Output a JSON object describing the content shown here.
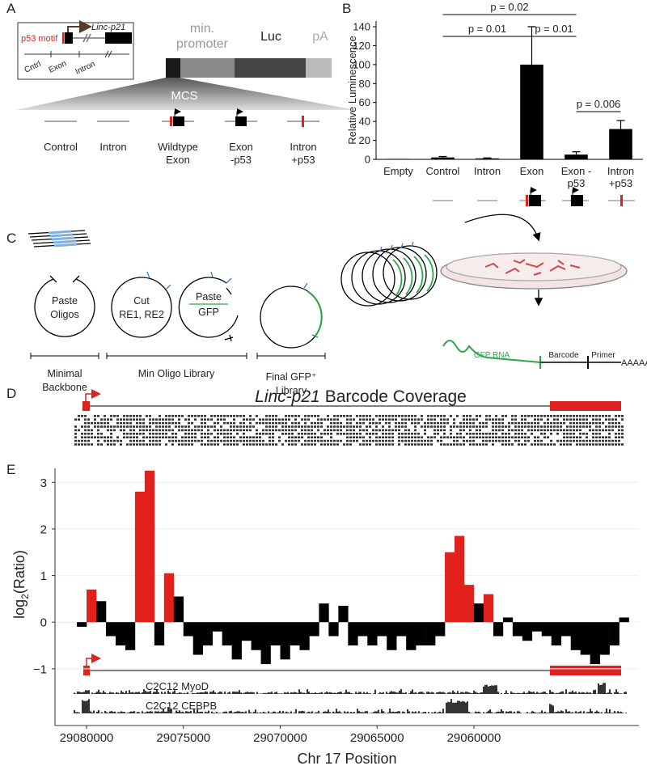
{
  "panel_labels": [
    "A",
    "B",
    "C",
    "D",
    "E"
  ],
  "panel_a": {
    "p53_motif": "p53 motif",
    "gene": "Linc-p21",
    "regions": [
      "Cntrl",
      "Exon",
      "Intron"
    ],
    "promoter": [
      "min.",
      "promoter"
    ],
    "luc": "Luc",
    "pa": "pA",
    "mcs": "MCS",
    "constructs": [
      [
        "Control"
      ],
      [
        "Intron"
      ],
      [
        "Wildtype",
        "Exon"
      ],
      [
        "Exon",
        "-p53"
      ],
      [
        "Intron",
        "+p53"
      ]
    ]
  },
  "panel_c": {
    "paste_oligos": [
      "Paste",
      "Oligos"
    ],
    "cut": [
      "Cut",
      "RE1, RE2"
    ],
    "paste_gfp": [
      "Paste",
      "GFP"
    ],
    "groups": [
      [
        "Minimal",
        "Backbone"
      ],
      [
        "Min Oligo Library"
      ],
      [
        "Final GFP⁺",
        "Library"
      ]
    ],
    "gfp_rna": "GFP RNA",
    "barcode": "Barcode",
    "primer": "Primer",
    "polya": "AAAAAA"
  },
  "panel_d": {
    "title_gene": "Linc-p21",
    "title_rest": "Barcode Coverage"
  },
  "chart_data": [
    {
      "type": "bar",
      "y_label": "Relative Luminescence",
      "categories": [
        "Empty",
        "Control",
        "Intron",
        "Exon",
        "Exon -p53",
        "Intron +p53"
      ],
      "values": [
        0.5,
        2,
        1,
        100,
        5,
        32
      ],
      "errors": [
        0,
        1,
        0.5,
        40,
        3,
        9
      ],
      "color": "#000000",
      "ylim": [
        0,
        146
      ],
      "yticks": [
        0,
        20,
        40,
        60,
        80,
        100,
        120,
        140
      ],
      "annotations": [
        {
          "text": "p = 0.02",
          "between": [
            "Control",
            "Exon -p53"
          ]
        },
        {
          "text": "p = 0.01",
          "between": [
            "Control",
            "Exon"
          ]
        },
        {
          "text": "p = 0.01",
          "between": [
            "Exon",
            "Exon -p53"
          ]
        },
        {
          "text": "p = 0.006",
          "between": [
            "Exon -p53",
            "Intron +p53"
          ]
        }
      ]
    },
    {
      "type": "bar",
      "y_label": {
        "main": "log",
        "sub": "2",
        "rest": "(Ratio)"
      },
      "x_label": "Chr 17 Position",
      "x": [
        29080250,
        29079750,
        29079250,
        29078750,
        29078250,
        29077750,
        29077250,
        29076750,
        29076250,
        29075750,
        29075250,
        29074750,
        29074250,
        29073750,
        29073250,
        29072750,
        29072250,
        29071750,
        29071250,
        29070750,
        29070250,
        29069750,
        29069250,
        29068750,
        29068250,
        29067750,
        29067250,
        29066750,
        29066250,
        29065750,
        29065250,
        29064750,
        29064250,
        29063750,
        29063250,
        29062750,
        29062250,
        29061750,
        29061250,
        29060750,
        29060250,
        29059750,
        29059250,
        29058750,
        29058250,
        29057750,
        29057250,
        29056750,
        29056250,
        29055750,
        29055250,
        29054750,
        29054250,
        29053750,
        29053250,
        29052750,
        29052250
      ],
      "values": [
        -0.1,
        0.7,
        0.45,
        -0.3,
        -0.5,
        -0.6,
        2.8,
        3.25,
        -0.5,
        1.05,
        0.55,
        -0.3,
        -0.7,
        -0.5,
        -0.2,
        -0.5,
        -0.8,
        -0.4,
        -0.6,
        -0.9,
        -0.5,
        -0.8,
        -0.5,
        -0.6,
        -0.3,
        0.4,
        -0.3,
        0.35,
        -0.5,
        -0.3,
        -0.5,
        -0.3,
        -0.6,
        -0.3,
        -0.6,
        -0.5,
        -0.5,
        -0.3,
        1.5,
        1.85,
        0.8,
        0.4,
        0.6,
        -0.3,
        0.1,
        -0.3,
        -0.4,
        -0.2,
        -0.3,
        -0.5,
        -0.3,
        -0.6,
        -0.7,
        -0.9,
        -0.7,
        -0.5,
        0.1
      ],
      "colors": [
        "#000000",
        "#e3211c",
        "#000000",
        "#000000",
        "#000000",
        "#000000",
        "#e3211c",
        "#e3211c",
        "#000000",
        "#e3211c",
        "#000000",
        "#000000",
        "#000000",
        "#000000",
        "#000000",
        "#000000",
        "#000000",
        "#000000",
        "#000000",
        "#000000",
        "#000000",
        "#000000",
        "#000000",
        "#000000",
        "#000000",
        "#000000",
        "#000000",
        "#000000",
        "#000000",
        "#000000",
        "#000000",
        "#000000",
        "#000000",
        "#000000",
        "#000000",
        "#000000",
        "#000000",
        "#000000",
        "#e3211c",
        "#e3211c",
        "#e3211c",
        "#000000",
        "#e3211c",
        "#000000",
        "#000000",
        "#000000",
        "#000000",
        "#000000",
        "#000000",
        "#000000",
        "#000000",
        "#000000",
        "#000000",
        "#000000",
        "#000000",
        "#000000",
        "#000000"
      ],
      "xlim": [
        29081630,
        29051480
      ],
      "xticks": [
        29080000,
        29075000,
        29070000,
        29065000,
        29060000
      ],
      "ylim": [
        -2.2,
        3.3
      ],
      "yticks": [
        {
          "value": -1,
          "label": "−1"
        },
        0,
        1,
        2,
        3
      ],
      "grid": true,
      "tracks": [
        "C2C12 MyoD",
        "C2C12 CEBPB"
      ]
    }
  ]
}
